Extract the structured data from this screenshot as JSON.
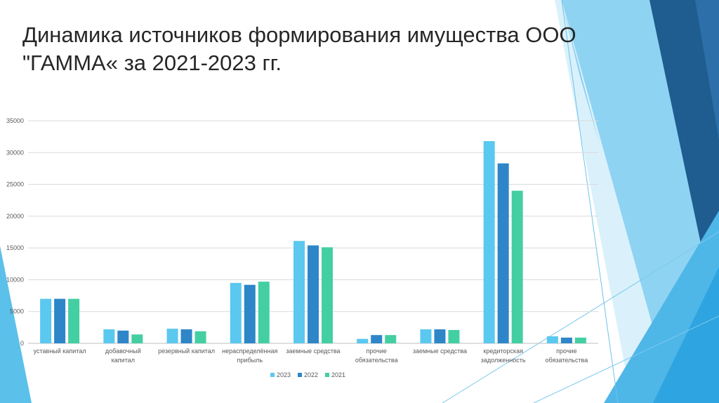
{
  "slide": {
    "title_lines": [
      "Динамика источников формирования имущества ООО",
      "\"ГАММА« за 2021-2023 гг."
    ]
  },
  "colors": {
    "decor_light": "#8fd3f3",
    "decor_mid": "#4fb6e8",
    "decor_dark": "#2d6fa8",
    "decor_deep": "#1f5c8f",
    "gridline": "#d9d9d9",
    "axis": "#bfbfbf"
  },
  "chart_data": {
    "type": "bar",
    "title": "",
    "xlabel": "",
    "ylabel": "",
    "ylim": [
      0,
      35000
    ],
    "yticks": [
      0,
      5000,
      10000,
      15000,
      20000,
      25000,
      30000,
      35000
    ],
    "grid": true,
    "legend_position": "bottom",
    "categories": [
      [
        "уставный капитал"
      ],
      [
        "добавочный",
        "капитал"
      ],
      [
        "резервный капитал"
      ],
      [
        "нераспределённая",
        "прибыль"
      ],
      [
        "заемные средства"
      ],
      [
        "прочие",
        "обязательства"
      ],
      [
        "заемные средства"
      ],
      [
        "кредиторская",
        "задолженность"
      ],
      [
        "прочие",
        "обязательства"
      ]
    ],
    "series": [
      {
        "name": "2023",
        "color": "#5bc8ef",
        "values": [
          7000,
          2200,
          2300,
          9500,
          16100,
          700,
          2200,
          31800,
          1100
        ]
      },
      {
        "name": "2022",
        "color": "#2e86c8",
        "values": [
          7000,
          2000,
          2200,
          9200,
          15400,
          1300,
          2200,
          28300,
          900
        ]
      },
      {
        "name": "2021",
        "color": "#44cfa3",
        "values": [
          7000,
          1400,
          1900,
          9700,
          15100,
          1300,
          2100,
          24000,
          900
        ]
      }
    ]
  }
}
